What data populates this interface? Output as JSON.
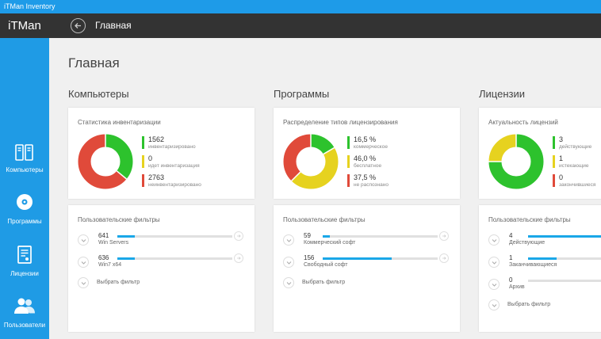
{
  "window": {
    "title": "iTMan Inventory"
  },
  "appbar": {
    "brand": "iTMan",
    "breadcrumb": "Главная"
  },
  "sidebar": {
    "items": [
      {
        "label": "Компьютеры",
        "icon": "computers-icon"
      },
      {
        "label": "Программы",
        "icon": "disc-icon"
      },
      {
        "label": "Лицензии",
        "icon": "license-icon"
      },
      {
        "label": "Пользователи",
        "icon": "users-icon"
      }
    ]
  },
  "page": {
    "title": "Главная"
  },
  "colors": {
    "green": "#2dc22d",
    "yellow": "#e6d21f",
    "red": "#e04a3a",
    "accent": "#1f9be5",
    "progress": "#1aa7e8"
  },
  "sections": [
    {
      "title": "Компьютеры",
      "stats_title": "Статистика инвентаризации",
      "legend": [
        {
          "value": "1562",
          "label": "инвентаризировано",
          "color": "#2dc22d",
          "fraction": 0.36
        },
        {
          "value": "0",
          "label": "идет инвентаризация",
          "color": "#e6d21f",
          "fraction": 0.0
        },
        {
          "value": "2763",
          "label": "неинвентаризировано",
          "color": "#e04a3a",
          "fraction": 0.64
        }
      ],
      "filters_title": "Пользовательские фильтры",
      "filters": [
        {
          "count": "641",
          "name": "Win Servers",
          "progress": 0.15
        },
        {
          "count": "636",
          "name": "Win7 x64",
          "progress": 0.15
        }
      ],
      "pick_label": "Выбрать фильтр"
    },
    {
      "title": "Программы",
      "stats_title": "Распределение типов лицензирования",
      "legend": [
        {
          "value": "16,5 %",
          "label": "коммерческое",
          "color": "#2dc22d",
          "fraction": 0.165
        },
        {
          "value": "46,0 %",
          "label": "бесплатное",
          "color": "#e6d21f",
          "fraction": 0.46
        },
        {
          "value": "37,5 %",
          "label": "не распознано",
          "color": "#e04a3a",
          "fraction": 0.375
        }
      ],
      "filters_title": "Пользовательские фильтры",
      "filters": [
        {
          "count": "59",
          "name": "Коммерческий софт",
          "progress": 0.06
        },
        {
          "count": "156",
          "name": "Свободный софт",
          "progress": 0.6
        }
      ],
      "pick_label": "Выбрать фильтр"
    },
    {
      "title": "Лицензии",
      "stats_title": "Актуальность лицензий",
      "legend": [
        {
          "value": "3",
          "label": "действующие",
          "color": "#2dc22d",
          "fraction": 0.75
        },
        {
          "value": "1",
          "label": "истекающие",
          "color": "#e6d21f",
          "fraction": 0.25
        },
        {
          "value": "0",
          "label": "закончившиеся",
          "color": "#e04a3a",
          "fraction": 0.0
        }
      ],
      "filters_title": "Пользовательские фильтры",
      "filters": [
        {
          "count": "4",
          "name": "Действующие",
          "progress": 1.0
        },
        {
          "count": "1",
          "name": "Заканчивающиеся",
          "progress": 0.25
        },
        {
          "count": "0",
          "name": "Архив",
          "progress": 0.0
        }
      ],
      "pick_label": "Выбрать фильтр"
    }
  ]
}
